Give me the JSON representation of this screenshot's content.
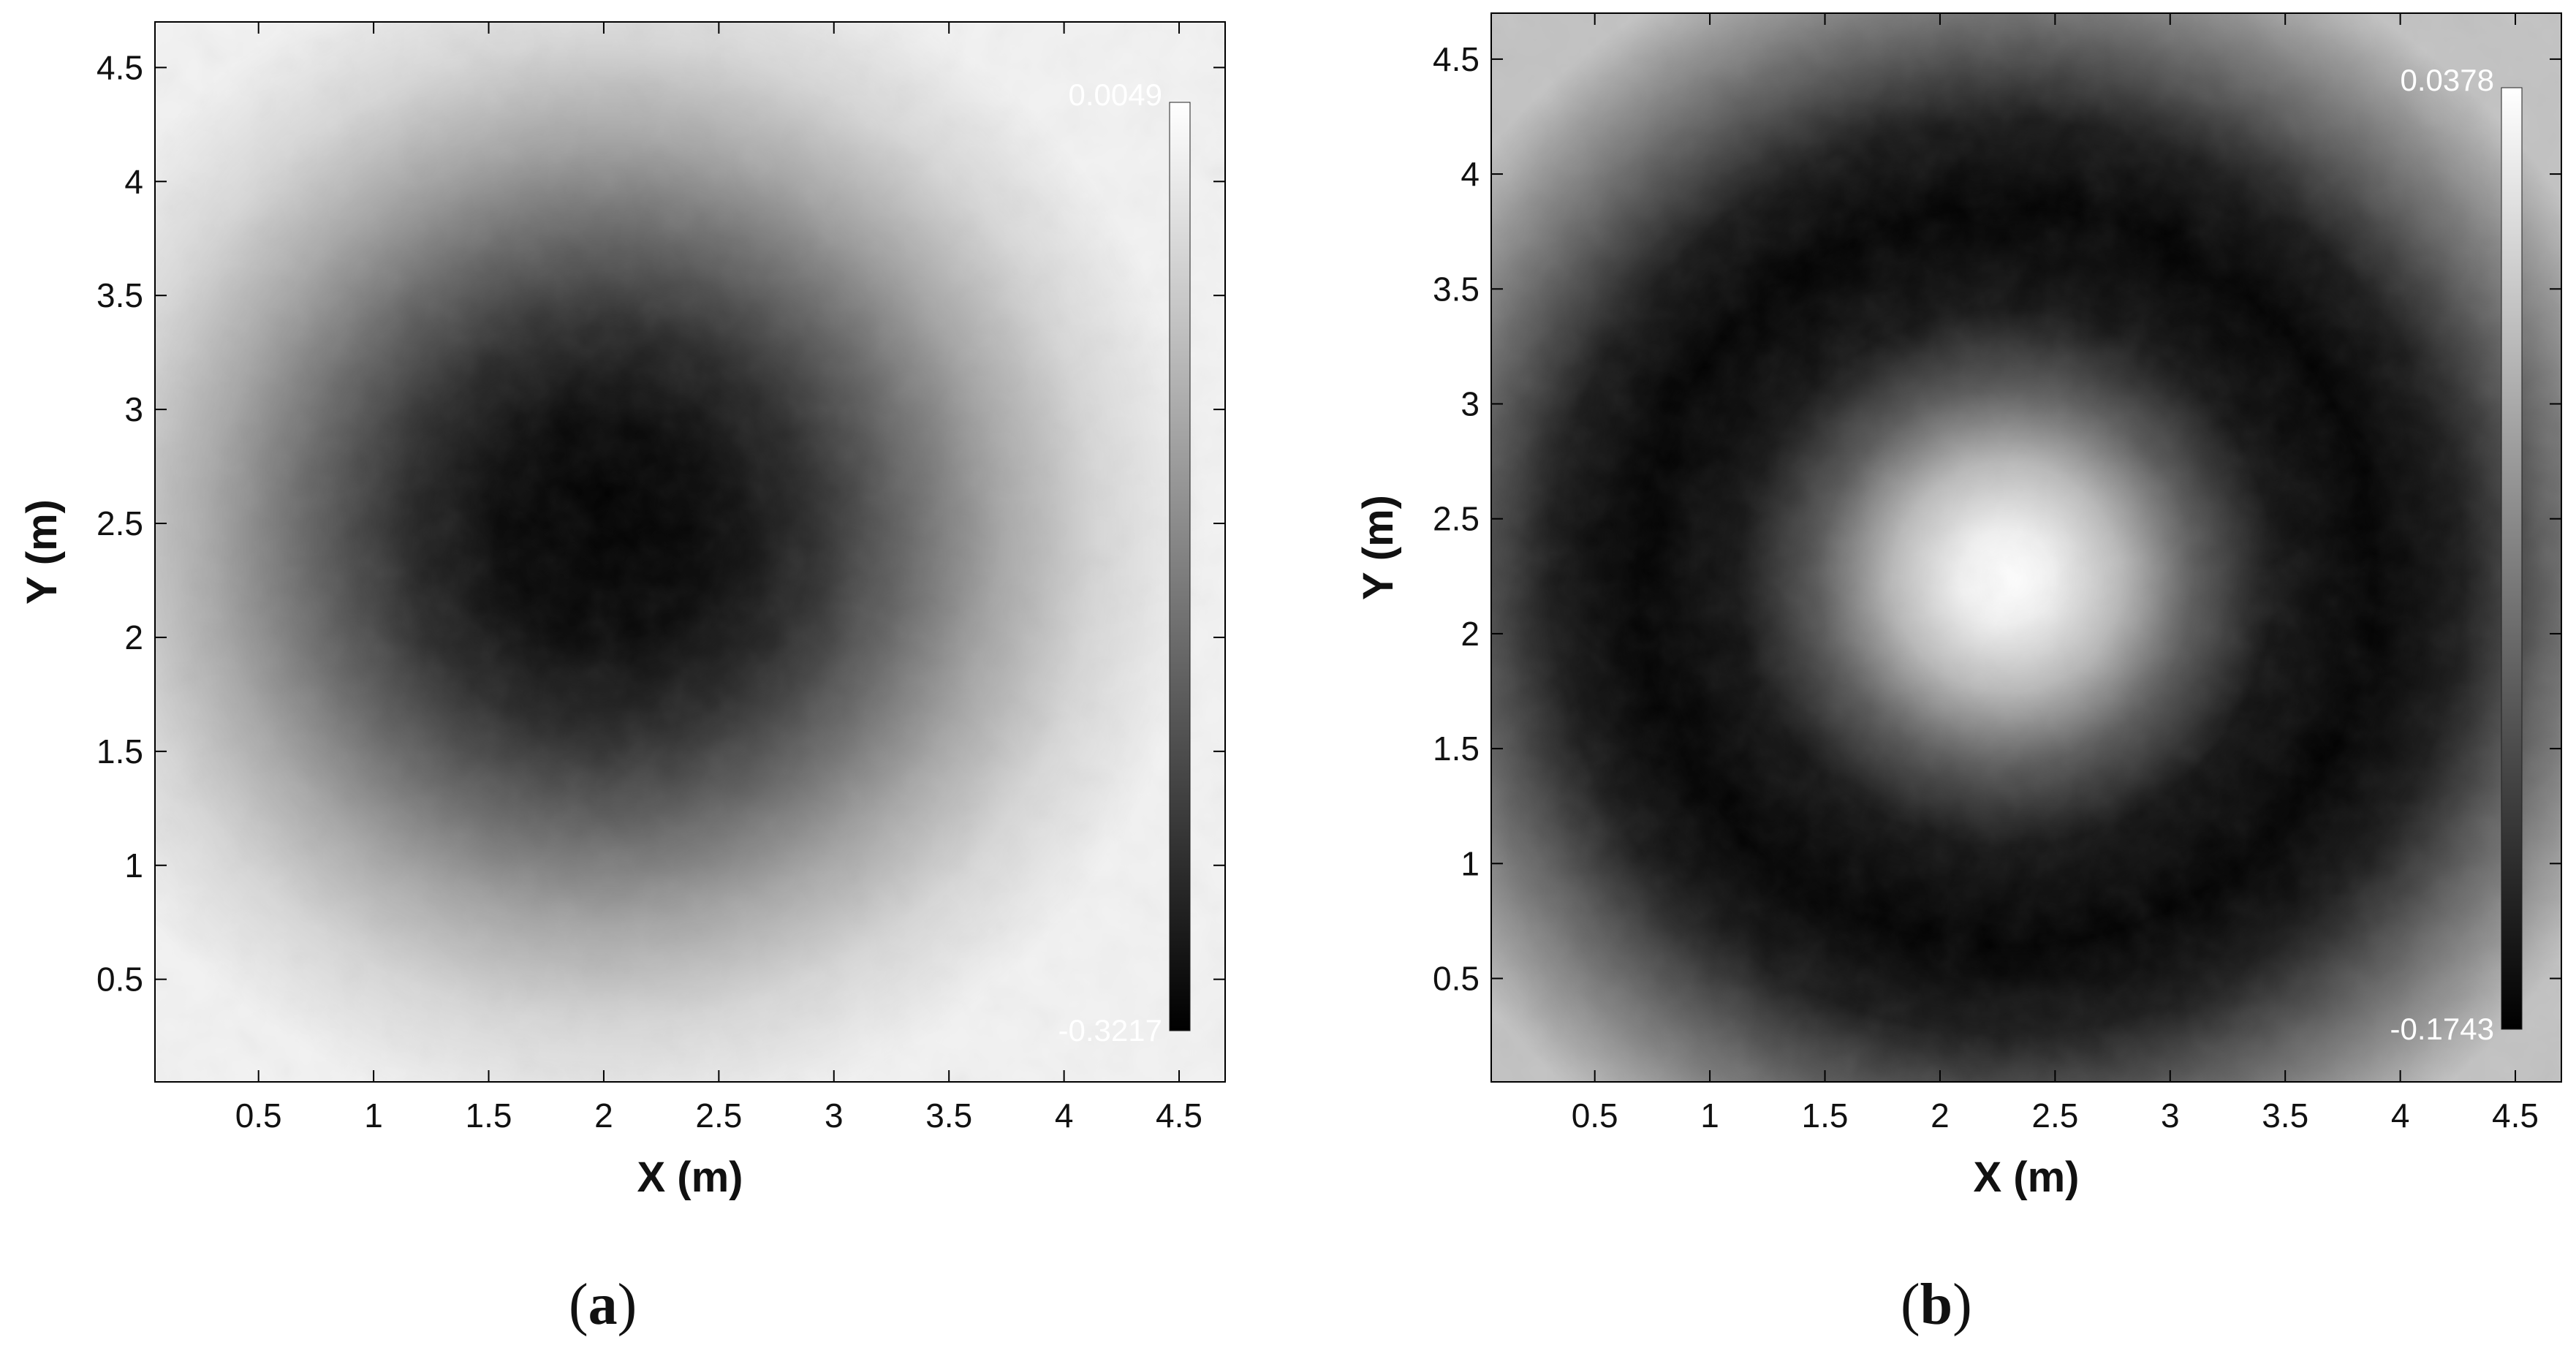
{
  "chart_data": [
    {
      "type": "heatmap",
      "panel_label": "a",
      "xlabel": "X (m)",
      "ylabel": "Y (m)",
      "xlim": [
        0.05,
        4.7
      ],
      "ylim": [
        0.05,
        4.7
      ],
      "xticks": [
        "0.5",
        "1",
        "1.5",
        "2",
        "2.5",
        "3",
        "3.5",
        "4",
        "4.5"
      ],
      "yticks": [
        "0.5",
        "1",
        "1.5",
        "2",
        "2.5",
        "3",
        "3.5",
        "4",
        "4.5"
      ],
      "colormap": "gray",
      "colorbar_max": "0.0049",
      "colorbar_min": "-0.3217",
      "colorbar_range": [
        -0.3217,
        0.0049
      ],
      "field": {
        "shape": "single basin",
        "center": [
          2.35,
          2.35
        ],
        "width_m": 1.05,
        "edge_value": 0.0049,
        "center_value": -0.3217
      }
    },
    {
      "type": "heatmap",
      "panel_label": "b",
      "xlabel": "X (m)",
      "ylabel": "Y (m)",
      "xlim": [
        0.05,
        4.7
      ],
      "ylim": [
        0.05,
        4.7
      ],
      "xticks": [
        "0.5",
        "1",
        "1.5",
        "2",
        "2.5",
        "3",
        "3.5",
        "4",
        "4.5"
      ],
      "yticks": [
        "0.5",
        "1",
        "1.5",
        "2",
        "2.5",
        "3",
        "3.5",
        "4",
        "4.5"
      ],
      "colormap": "gray",
      "colorbar_max": "0.0378",
      "colorbar_min": "-0.1743",
      "colorbar_range": [
        -0.1743,
        0.0378
      ],
      "field": {
        "shape": "central peak with dark ring",
        "center": [
          2.35,
          2.25
        ],
        "peak_width_m": 0.55,
        "ring_radius_m": 1.55,
        "ring_width_m": 0.45,
        "peak_value": 0.0378,
        "ring_value": -0.1743
      }
    }
  ]
}
